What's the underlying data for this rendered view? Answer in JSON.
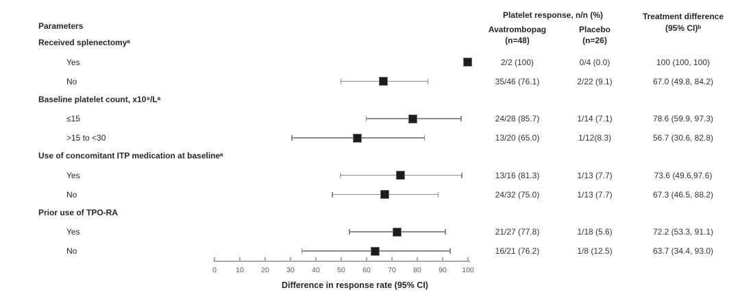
{
  "header": {
    "parameters": "Parameters",
    "platelet_response": "Platelet response, n/n (%)",
    "avatrombopag": "Avatrombopag",
    "avatrombopag_n": "(n=48)",
    "placebo": "Placebo",
    "placebo_n": "(n=26)",
    "difference_1": "Treatment difference",
    "difference_2": "(95% CI)ᵇ"
  },
  "colors": {
    "marker": "#1c1c1c",
    "ci_line": "#8a8a8a",
    "axis_line": "#a8a8a8",
    "tick_label": "#595959",
    "text": "#262626"
  },
  "chart_data": {
    "type": "scatter",
    "subtype": "forest-plot",
    "xlabel": "Difference in response rate (95% CI)",
    "xlim": [
      0,
      100
    ],
    "xticks": [
      0,
      10,
      20,
      30,
      40,
      50,
      60,
      70,
      80,
      90,
      100
    ],
    "grid": false,
    "marker_shape": "black-square",
    "groups": [
      {
        "heading": "Received splenectomyᵃ",
        "rows": [
          {
            "label": "Yes",
            "avatrombopag": "2/2 (100)",
            "placebo": "0/4 (0.0)",
            "difference": "100 (100, 100)",
            "estimate": 100,
            "ci_low": 100,
            "ci_high": 100
          },
          {
            "label": "No",
            "avatrombopag": "35/46 (76.1)",
            "placebo": "2/22 (9.1)",
            "difference": "67.0 (49.8, 84.2)",
            "estimate": 67.0,
            "ci_low": 49.8,
            "ci_high": 84.2
          }
        ]
      },
      {
        "heading": "Baseline platelet count, x10⁹/Lᵃ",
        "rows": [
          {
            "label": "≤15",
            "avatrombopag": "24/28 (85.7)",
            "placebo": "1/14 (7.1)",
            "difference": "78.6 (59.9, 97.3)",
            "estimate": 78.6,
            "ci_low": 59.9,
            "ci_high": 97.3
          },
          {
            "label": ">15 to <30",
            "avatrombopag": "13/20 (65.0)",
            "placebo": "1/12(8.3)",
            "difference": "56.7 (30.6, 82.8)",
            "estimate": 56.7,
            "ci_low": 30.6,
            "ci_high": 82.8
          }
        ]
      },
      {
        "heading": "Use of concomitant ITP medication at baselineᵃ",
        "rows": [
          {
            "label": "Yes",
            "avatrombopag": "13/16 (81.3)",
            "placebo": "1/13 (7.7)",
            "difference": "73.6 (49.6,97.6)",
            "estimate": 73.6,
            "ci_low": 49.6,
            "ci_high": 97.6
          },
          {
            "label": "No",
            "avatrombopag": "24/32 (75.0)",
            "placebo": "1/13 (7.7)",
            "difference": "67.3 (46.5, 88.2)",
            "estimate": 67.3,
            "ci_low": 46.5,
            "ci_high": 88.2
          }
        ]
      },
      {
        "heading": "Prior use of TPO-RA",
        "rows": [
          {
            "label": "Yes",
            "avatrombopag": "21/27 (77.8)",
            "placebo": "1/18 (5.6)",
            "difference": "72.2 (53.3, 91.1)",
            "estimate": 72.2,
            "ci_low": 53.3,
            "ci_high": 91.1
          },
          {
            "label": "No",
            "avatrombopag": "16/21 (76.2)",
            "placebo": "1/8 (12.5)",
            "difference": "63.7 (34.4, 93.0)",
            "estimate": 63.7,
            "ci_low": 34.4,
            "ci_high": 93.0
          }
        ]
      }
    ]
  }
}
